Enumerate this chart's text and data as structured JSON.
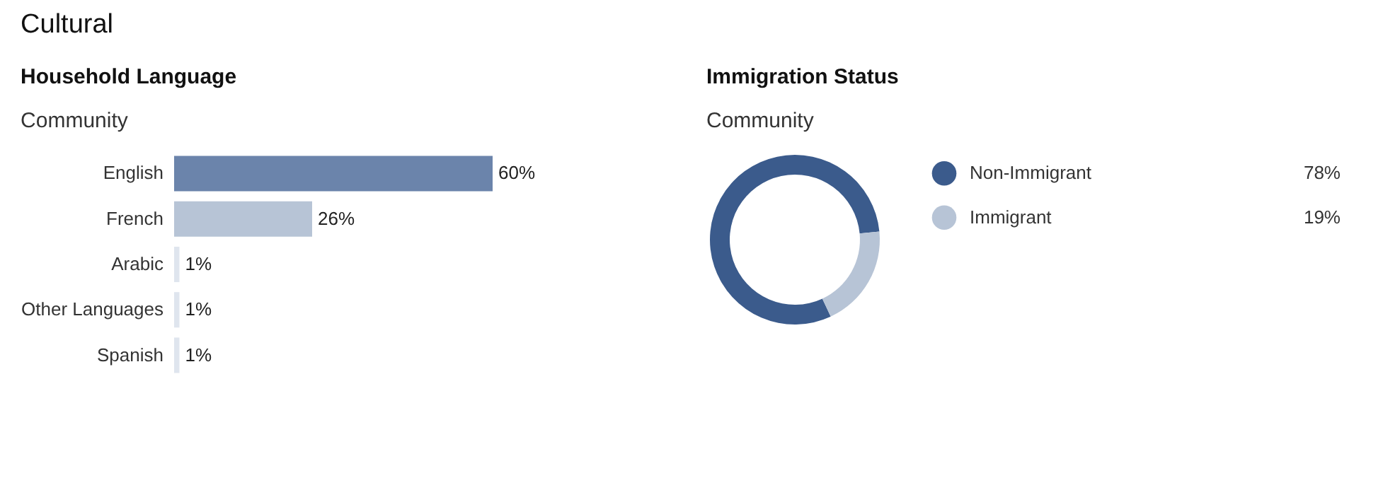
{
  "chart_data": [
    {
      "type": "bar",
      "orientation": "horizontal",
      "title": "Household Language",
      "subtitle": "Community",
      "annotations": [
        "Cultural"
      ],
      "categories": [
        "English",
        "French",
        "Arabic",
        "Other Languages",
        "Spanish"
      ],
      "values": [
        60,
        26,
        1,
        1,
        1
      ],
      "value_labels": [
        "60%",
        "26%",
        "1%",
        "1%",
        "1%"
      ],
      "colors": [
        "#6b84ab",
        "#b7c4d6",
        "#dfe5ee",
        "#dfe5ee",
        "#dfe5ee"
      ]
    },
    {
      "type": "donut",
      "title": "Immigration Status",
      "subtitle": "Community",
      "categories": [
        "Non-Immigrant",
        "Immigrant"
      ],
      "values": [
        78,
        19
      ],
      "value_labels": [
        "78%",
        "19%"
      ],
      "colors": [
        "#3b5b8c",
        "#b7c4d6"
      ],
      "legend": "right"
    }
  ]
}
